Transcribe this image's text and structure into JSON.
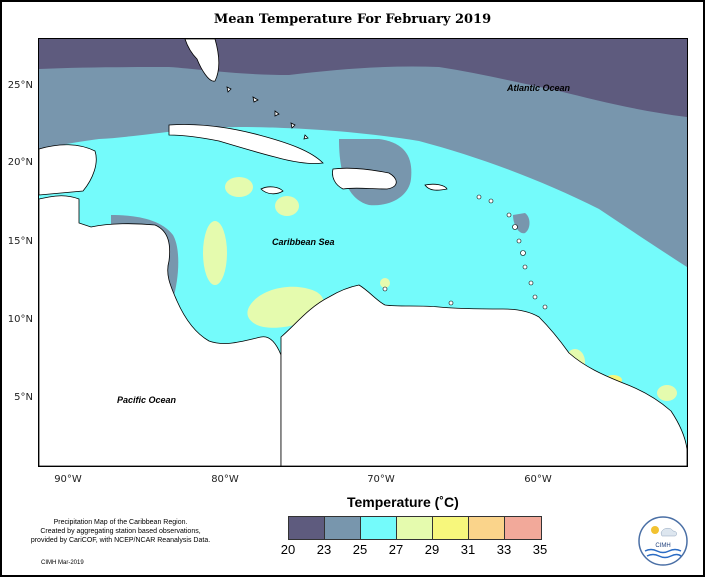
{
  "title": "Mean Temperature For February 2019",
  "map": {
    "y_ticks": [
      "25°N",
      "20°N",
      "15°N",
      "10°N",
      "5°N"
    ],
    "x_ticks": [
      "90°W",
      "80°W",
      "70°W",
      "60°W"
    ],
    "labels": {
      "atlantic": "Atlantic Ocean",
      "caribbean": "Caribbean Sea",
      "pacific": "Pacific Ocean"
    },
    "colors": {
      "c20_23": "#5e5b7e",
      "c23_25": "#7896ad",
      "c25_27": "#74fbfb",
      "c27_29": "#e5fbae",
      "c29_31": "#f7f77c",
      "c31_33": "#fad48b",
      "c33_35": "#f2a99a",
      "land": "#ffffff"
    }
  },
  "legend": {
    "title": "Temperature (˚C)",
    "labels": [
      "20",
      "23",
      "25",
      "27",
      "29",
      "31",
      "33",
      "35"
    ],
    "colors": [
      "#5e5b7e",
      "#7896ad",
      "#74fbfb",
      "#e5fbae",
      "#f7f77c",
      "#fad48b",
      "#f2a99a"
    ]
  },
  "note": {
    "line1": "Precipitation Map of the Caribbean Region.",
    "line2": "Created by aggregating station based observations,",
    "line3": "provided by CariCOF, with NCEP/NCAR Reanalysis Data."
  },
  "credit": "CIMH Mar-2019",
  "logo": {
    "text": "CIMH"
  }
}
